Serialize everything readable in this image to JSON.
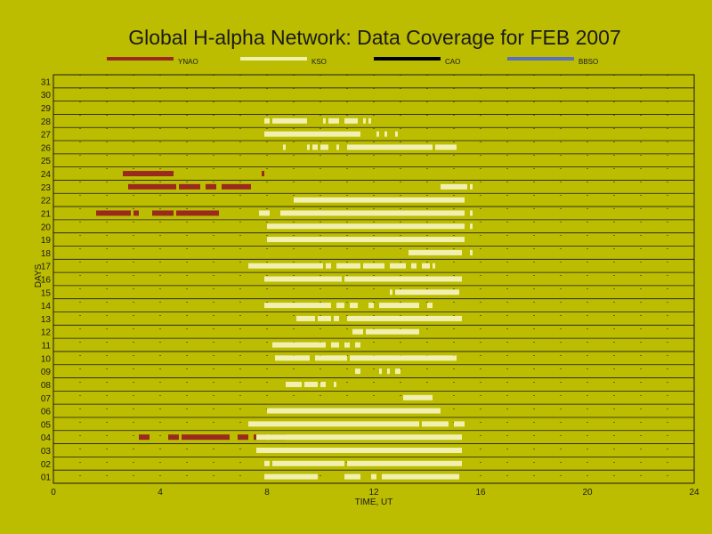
{
  "chart_data": {
    "type": "timeline",
    "title": "Global H-alpha Network: Data Coverage for FEB 2007",
    "xlabel": "TIME, UT",
    "ylabel": "DAYS",
    "xlim": [
      0,
      24
    ],
    "x_ticks": [
      0,
      4,
      8,
      12,
      16,
      20,
      24
    ],
    "days": [
      "01",
      "02",
      "03",
      "04",
      "05",
      "06",
      "07",
      "08",
      "09",
      "10",
      "11",
      "12",
      "13",
      "14",
      "15",
      "16",
      "17",
      "18",
      "19",
      "20",
      "21",
      "22",
      "23",
      "24",
      "25",
      "26",
      "27",
      "28",
      "29",
      "30",
      "31"
    ],
    "grid": true,
    "legend_position": "top",
    "series": [
      {
        "name": "YNAO",
        "color": "#9b2a1e",
        "intervals": [
          {
            "day": 4,
            "start": 3.2,
            "end": 3.6
          },
          {
            "day": 4,
            "start": 4.3,
            "end": 4.7
          },
          {
            "day": 4,
            "start": 4.8,
            "end": 6.6
          },
          {
            "day": 4,
            "start": 6.9,
            "end": 7.3
          },
          {
            "day": 4,
            "start": 7.5,
            "end": 8.0
          },
          {
            "day": 4,
            "start": 8.1,
            "end": 8.7
          },
          {
            "day": 21,
            "start": 1.6,
            "end": 2.9
          },
          {
            "day": 21,
            "start": 3.0,
            "end": 3.2
          },
          {
            "day": 21,
            "start": 3.7,
            "end": 4.5
          },
          {
            "day": 21,
            "start": 4.6,
            "end": 6.2
          },
          {
            "day": 23,
            "start": 2.8,
            "end": 4.6
          },
          {
            "day": 23,
            "start": 4.7,
            "end": 5.5
          },
          {
            "day": 23,
            "start": 5.7,
            "end": 6.1
          },
          {
            "day": 23,
            "start": 6.3,
            "end": 7.4
          },
          {
            "day": 24,
            "start": 2.6,
            "end": 4.5
          },
          {
            "day": 24,
            "start": 7.8,
            "end": 7.9
          }
        ]
      },
      {
        "name": "KSO",
        "color": "#f2f0b0",
        "intervals": [
          {
            "day": 1,
            "start": 7.9,
            "end": 9.9
          },
          {
            "day": 1,
            "start": 10.9,
            "end": 11.5
          },
          {
            "day": 1,
            "start": 11.9,
            "end": 12.1
          },
          {
            "day": 1,
            "start": 12.3,
            "end": 15.2
          },
          {
            "day": 2,
            "start": 7.9,
            "end": 8.1
          },
          {
            "day": 2,
            "start": 8.2,
            "end": 10.9
          },
          {
            "day": 2,
            "start": 11.0,
            "end": 15.3
          },
          {
            "day": 3,
            "start": 7.6,
            "end": 15.3
          },
          {
            "day": 4,
            "start": 7.6,
            "end": 15.3
          },
          {
            "day": 5,
            "start": 7.3,
            "end": 13.7
          },
          {
            "day": 5,
            "start": 13.8,
            "end": 14.8
          },
          {
            "day": 5,
            "start": 15.0,
            "end": 15.4
          },
          {
            "day": 6,
            "start": 8.0,
            "end": 14.5
          },
          {
            "day": 7,
            "start": 13.1,
            "end": 14.2
          },
          {
            "day": 8,
            "start": 8.7,
            "end": 9.3
          },
          {
            "day": 8,
            "start": 9.4,
            "end": 9.9
          },
          {
            "day": 8,
            "start": 10.0,
            "end": 10.2
          },
          {
            "day": 8,
            "start": 10.5,
            "end": 10.6
          },
          {
            "day": 9,
            "start": 11.3,
            "end": 11.5
          },
          {
            "day": 9,
            "start": 12.2,
            "end": 12.3
          },
          {
            "day": 9,
            "start": 12.5,
            "end": 12.6
          },
          {
            "day": 9,
            "start": 12.8,
            "end": 13.0
          },
          {
            "day": 10,
            "start": 8.3,
            "end": 9.6
          },
          {
            "day": 10,
            "start": 9.8,
            "end": 11.0
          },
          {
            "day": 10,
            "start": 11.1,
            "end": 15.1
          },
          {
            "day": 11,
            "start": 8.2,
            "end": 10.2
          },
          {
            "day": 11,
            "start": 10.4,
            "end": 10.7
          },
          {
            "day": 11,
            "start": 10.9,
            "end": 11.1
          },
          {
            "day": 11,
            "start": 11.3,
            "end": 11.5
          },
          {
            "day": 12,
            "start": 11.2,
            "end": 11.6
          },
          {
            "day": 12,
            "start": 11.7,
            "end": 13.7
          },
          {
            "day": 13,
            "start": 9.1,
            "end": 9.8
          },
          {
            "day": 13,
            "start": 9.9,
            "end": 10.4
          },
          {
            "day": 13,
            "start": 10.5,
            "end": 10.7
          },
          {
            "day": 13,
            "start": 11.0,
            "end": 15.3
          },
          {
            "day": 14,
            "start": 7.9,
            "end": 10.4
          },
          {
            "day": 14,
            "start": 10.6,
            "end": 10.9
          },
          {
            "day": 14,
            "start": 11.1,
            "end": 11.4
          },
          {
            "day": 14,
            "start": 11.8,
            "end": 12.0
          },
          {
            "day": 14,
            "start": 12.2,
            "end": 13.7
          },
          {
            "day": 14,
            "start": 14.0,
            "end": 14.2
          },
          {
            "day": 15,
            "start": 12.6,
            "end": 12.7
          },
          {
            "day": 15,
            "start": 12.8,
            "end": 15.2
          },
          {
            "day": 16,
            "start": 7.9,
            "end": 10.8
          },
          {
            "day": 16,
            "start": 10.9,
            "end": 15.3
          },
          {
            "day": 17,
            "start": 7.3,
            "end": 10.1
          },
          {
            "day": 17,
            "start": 10.2,
            "end": 10.4
          },
          {
            "day": 17,
            "start": 10.6,
            "end": 11.5
          },
          {
            "day": 17,
            "start": 11.6,
            "end": 12.4
          },
          {
            "day": 17,
            "start": 12.6,
            "end": 13.2
          },
          {
            "day": 17,
            "start": 13.4,
            "end": 13.6
          },
          {
            "day": 17,
            "start": 13.8,
            "end": 14.1
          },
          {
            "day": 17,
            "start": 14.2,
            "end": 14.3
          },
          {
            "day": 18,
            "start": 13.3,
            "end": 15.3
          },
          {
            "day": 18,
            "start": 15.6,
            "end": 15.7
          },
          {
            "day": 19,
            "start": 8.0,
            "end": 15.4
          },
          {
            "day": 20,
            "start": 8.0,
            "end": 15.4
          },
          {
            "day": 20,
            "start": 15.6,
            "end": 15.7
          },
          {
            "day": 21,
            "start": 7.7,
            "end": 8.1
          },
          {
            "day": 21,
            "start": 8.5,
            "end": 15.4
          },
          {
            "day": 21,
            "start": 15.6,
            "end": 15.7
          },
          {
            "day": 22,
            "start": 9.0,
            "end": 15.4
          },
          {
            "day": 23,
            "start": 14.5,
            "end": 15.5
          },
          {
            "day": 23,
            "start": 15.6,
            "end": 15.7
          },
          {
            "day": 26,
            "start": 8.6,
            "end": 8.7
          },
          {
            "day": 26,
            "start": 9.5,
            "end": 9.6
          },
          {
            "day": 26,
            "start": 9.7,
            "end": 9.9
          },
          {
            "day": 26,
            "start": 10.0,
            "end": 10.3
          },
          {
            "day": 26,
            "start": 10.6,
            "end": 10.7
          },
          {
            "day": 26,
            "start": 11.0,
            "end": 14.2
          },
          {
            "day": 26,
            "start": 14.3,
            "end": 15.1
          },
          {
            "day": 27,
            "start": 7.9,
            "end": 11.5
          },
          {
            "day": 27,
            "start": 12.1,
            "end": 12.2
          },
          {
            "day": 27,
            "start": 12.4,
            "end": 12.5
          },
          {
            "day": 27,
            "start": 12.8,
            "end": 12.9
          },
          {
            "day": 28,
            "start": 7.9,
            "end": 8.1
          },
          {
            "day": 28,
            "start": 8.2,
            "end": 9.5
          },
          {
            "day": 28,
            "start": 10.1,
            "end": 10.2
          },
          {
            "day": 28,
            "start": 10.3,
            "end": 10.7
          },
          {
            "day": 28,
            "start": 10.9,
            "end": 11.4
          },
          {
            "day": 28,
            "start": 11.6,
            "end": 11.7
          },
          {
            "day": 28,
            "start": 11.8,
            "end": 11.9
          }
        ]
      },
      {
        "name": "CAO",
        "color": "#000000",
        "intervals": []
      },
      {
        "name": "BBSO",
        "color": "#5a6fc0",
        "intervals": []
      }
    ]
  }
}
